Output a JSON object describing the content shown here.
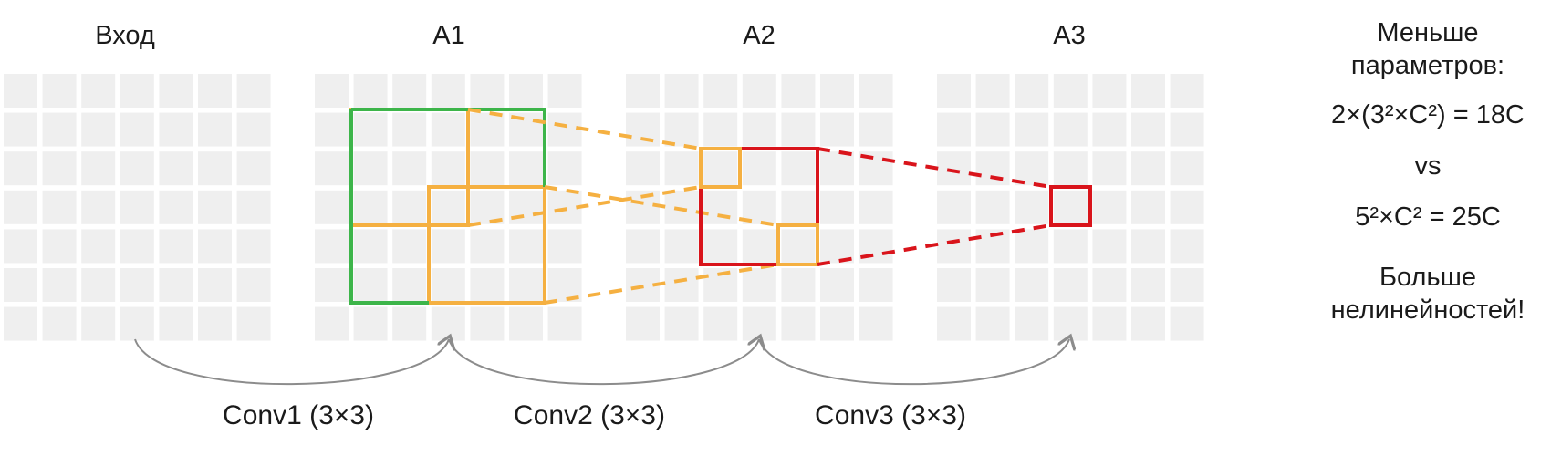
{
  "diagram": {
    "grid_titles": [
      "Вход",
      "A1",
      "A2",
      "A3"
    ],
    "conv_labels": [
      "Conv1 (3×3)",
      "Conv2 (3×3)",
      "Conv3 (3×3)"
    ],
    "grid_size": 7,
    "colors": {
      "cell": "#efefef",
      "green": "#3db54a",
      "orange": "#f5b041",
      "red": "#d9141b",
      "arrow": "#8c8c8c"
    }
  },
  "notes": {
    "params_title_1": "Меньше",
    "params_title_2": "параметров:",
    "formula_stacked": "2×(3²×C²) = 18C",
    "vs": "vs",
    "formula_single": "5²×C² = 25C",
    "benefit_1": "Больше",
    "benefit_2": "нелинейностей!"
  }
}
